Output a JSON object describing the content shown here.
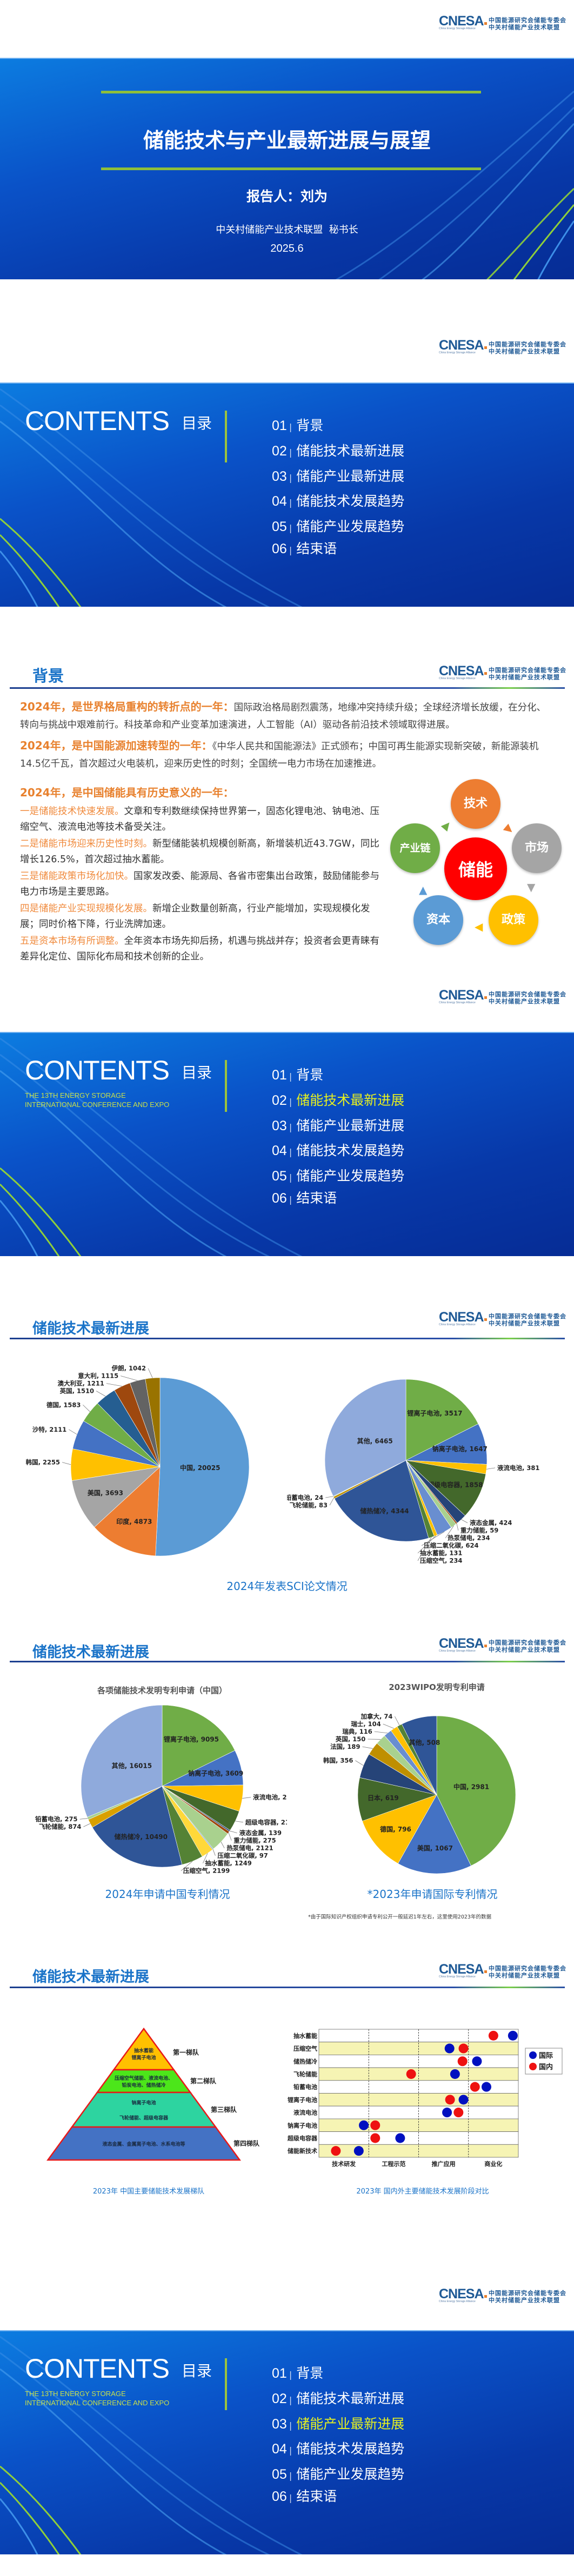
{
  "logo": {
    "abbr": "CNESA",
    "en": "China Energy Storage Alliance",
    "line1": "中国能源研究会储能专委会",
    "line2": "中关村储能产业技术联盟"
  },
  "cover": {
    "title": "储能技术与产业最新进展与展望",
    "speaker": "报告人：刘为",
    "org": "中关村储能产业技术联盟  秘书长",
    "date": "2025.6"
  },
  "contents": {
    "title": "CONTENTS",
    "title_cn": "目录",
    "subtitle_lines": [
      "THE 13TH ENERGY STORAGE",
      "INTERNATIONAL CONFERENCE AND EXPO"
    ],
    "items": [
      {
        "num": "01",
        "label": "背景"
      },
      {
        "num": "02",
        "label": "储能技术最新进展"
      },
      {
        "num": "03",
        "label": "储能产业最新进展"
      },
      {
        "num": "04",
        "label": "储能技术发展趋势"
      },
      {
        "num": "05",
        "label": "储能产业发展趋势"
      },
      {
        "num": "06",
        "label": "结束语"
      }
    ],
    "highlight_color": "#e6f020"
  },
  "background": {
    "title": "背景",
    "paragraphs": [
      {
        "head": "2024年，是世界格局重构的转折点的一年：",
        "body": "国际政治格局剧烈震荡，地缘冲突持续升级；全球经济增长放缓，在分化、转向与挑战中艰难前行。科技革命和产业变革加速演进，人工智能（AI）驱动各前沿技术领域取得进展。"
      },
      {
        "head": "2024年，是中国能源加速转型的一年：",
        "body": "《中华人民共和国能源法》正式颁布；中国可再生能源实现新突破，新能源装机14.5亿千瓦，首次超过火电装机，迎来历史性的时刻；全国统一电力市场在加速推进。"
      },
      {
        "head": "2024年，是中国储能具有历史意义的一年：",
        "body": ""
      }
    ],
    "points": [
      {
        "lead": "一是储能技术快速发展。",
        "text": "文章和专利数继续保持世界第一，固态化锂电池、钠电池、压缩空气、液流电池等技术备受关注。"
      },
      {
        "lead": "二是储能市场迎来历史性时刻。",
        "text": "新型储能装机规模创新高，新增装机近43.7GW，同比增长126.5%，首次超过抽水蓄能。"
      },
      {
        "lead": "三是储能政策市场化加快。",
        "text": "国家发改委、能源局、各省市密集出台政策，鼓励储能参与电力市场是主要思路。"
      },
      {
        "lead": "四是储能产业实现规模化发展。",
        "text": "新增企业数量创新高，行业产能增加，实现规模化发展；同时价格下降，行业洗牌加速。"
      },
      {
        "lead": "五是资本市场有所调整。",
        "text": "全年资本市场先抑后扬，机遇与挑战并存；投资者会更青睐有差异化定位、国际化布局和技术创新的企业。"
      }
    ],
    "cycle": {
      "center": "储能",
      "nodes": [
        {
          "label": "技术",
          "color": "#ed7d31"
        },
        {
          "label": "市场",
          "color": "#a5a5a5"
        },
        {
          "label": "政策",
          "color": "#ffc000"
        },
        {
          "label": "资本",
          "color": "#5b9bd5"
        },
        {
          "label": "产业链",
          "color": "#70ad47"
        }
      ],
      "center_color": "#ff0000"
    }
  },
  "tech_progress": {
    "title": "储能技术最新进展",
    "sci_caption": "2024年发表SCI论文情况",
    "cn_patent_caption": "2024年申请中国专利情况",
    "intl_patent_caption": "*2023年申请国际专利情况",
    "intl_note": "*由于国际知识产权组织申请专利公开一般延迟1年左右，这里使用2023年的数据",
    "pyramid_caption": "2023年 中国主要储能技术发展梯队",
    "stage_caption": "2023年 国内外主要储能技术发展阶段对比"
  },
  "pyramid": {
    "tiers": [
      {
        "label": "第一梯队",
        "lines": [
          "抽水蓄能",
          "锂离子电池"
        ],
        "color": "#ffc000"
      },
      {
        "label": "第二梯队",
        "lines": [
          "压缩空气储能、液流电池、",
          "铅炭电池、储热储冷"
        ],
        "color": "#4ce61a"
      },
      {
        "label": "第三梯队",
        "lines": [
          "钠离子电池",
          "飞轮储能、超级电容器"
        ],
        "color": "#2dd4a0"
      },
      {
        "label": "第四梯队",
        "lines": [
          "液态金属、金属离子电池、水系电池等"
        ],
        "color": "#4472c4"
      }
    ],
    "border_color": "#e81818"
  },
  "chart_data": [
    {
      "type": "pie",
      "title": "",
      "slices": [
        {
          "label": "中国",
          "value": 20025,
          "color": "#5b9bd5"
        },
        {
          "label": "印度",
          "value": 4873,
          "color": "#ed7d31"
        },
        {
          "label": "美国",
          "value": 3693,
          "color": "#a5a5a5"
        },
        {
          "label": "韩国",
          "value": 2255,
          "color": "#ffc000"
        },
        {
          "label": "沙特",
          "value": 2111,
          "color": "#4472c4"
        },
        {
          "label": "德国",
          "value": 1583,
          "color": "#70ad47"
        },
        {
          "label": "英国",
          "value": 1510,
          "color": "#255e91"
        },
        {
          "label": "澳大利亚",
          "value": 1211,
          "color": "#9e480e"
        },
        {
          "label": "意大利",
          "value": 1115,
          "color": "#636363"
        },
        {
          "label": "伊朗",
          "value": 1042,
          "color": "#997300"
        }
      ]
    },
    {
      "type": "pie",
      "title": "",
      "slices": [
        {
          "label": "锂离子电池",
          "value": 3517,
          "color": "#70ad47"
        },
        {
          "label": "钠离子电池",
          "value": 1647,
          "color": "#4472c4"
        },
        {
          "label": "液流电池",
          "value": 381,
          "color": "#ffc000"
        },
        {
          "label": "超级电容器",
          "value": 1858,
          "color": "#43682b"
        },
        {
          "label": "液态金属",
          "value": 424,
          "color": "#264478"
        },
        {
          "label": "重力储能",
          "value": 59,
          "color": "#9e480e"
        },
        {
          "label": "热泵储电",
          "value": 234,
          "color": "#a9d18e"
        },
        {
          "label": "压缩二氧化碳",
          "value": 624,
          "color": "#698ed0"
        },
        {
          "label": "抽水蓄能",
          "value": 131,
          "color": "#ffc000"
        },
        {
          "label": "压缩空气",
          "value": 234,
          "color": "#548235"
        },
        {
          "label": "储热储冷",
          "value": 4344,
          "color": "#2f5597"
        },
        {
          "label": "飞轮储能",
          "value": 83,
          "color": "#bf9000"
        },
        {
          "label": "铅蓄电池",
          "value": 24,
          "color": "#a9d18e"
        },
        {
          "label": "其他",
          "value": 6465,
          "color": "#8faadc"
        }
      ]
    },
    {
      "type": "pie",
      "title": "各项储能技术发明专利申请（中国）",
      "slices": [
        {
          "label": "锂离子电池",
          "value": 9095,
          "color": "#70ad47"
        },
        {
          "label": "钠离子电池",
          "value": 3609,
          "color": "#4472c4"
        },
        {
          "label": "液流电池",
          "value": 2686,
          "color": "#ffc000"
        },
        {
          "label": "超级电容器",
          "value": 2134,
          "color": "#43682b"
        },
        {
          "label": "液态金属",
          "value": 139,
          "color": "#264478"
        },
        {
          "label": "重力储能",
          "value": 275,
          "color": "#9e480e"
        },
        {
          "label": "热泵储电",
          "value": 2121,
          "color": "#a9d18e"
        },
        {
          "label": "压缩二氧化碳",
          "value": 97,
          "color": "#698ed0"
        },
        {
          "label": "抽水蓄能",
          "value": 1249,
          "color": "#ffd83a"
        },
        {
          "label": "压缩空气",
          "value": 2199,
          "color": "#548235"
        },
        {
          "label": "储热储冷",
          "value": 10490,
          "color": "#2f5597"
        },
        {
          "label": "飞轮储能",
          "value": 874,
          "color": "#d9a000"
        },
        {
          "label": "铅蓄电池",
          "value": 275,
          "color": "#a9d18e"
        },
        {
          "label": "其他",
          "value": 16015,
          "color": "#8faadc"
        }
      ]
    },
    {
      "type": "pie",
      "title": "2023WIPO发明专利申请",
      "slices": [
        {
          "label": "中国",
          "value": 2981,
          "color": "#70ad47"
        },
        {
          "label": "美国",
          "value": 1067,
          "color": "#4472c4"
        },
        {
          "label": "德国",
          "value": 796,
          "color": "#ffc000"
        },
        {
          "label": "日本",
          "value": 619,
          "color": "#43682b"
        },
        {
          "label": "韩国",
          "value": 356,
          "color": "#264478"
        },
        {
          "label": "法国",
          "value": 189,
          "color": "#bf8f00"
        },
        {
          "label": "英国",
          "value": 150,
          "color": "#a9d18e"
        },
        {
          "label": "瑞典",
          "value": 116,
          "color": "#698ed0"
        },
        {
          "label": "瑞士",
          "value": 104,
          "color": "#ffc000"
        },
        {
          "label": "加拿大",
          "value": 74,
          "color": "#548235"
        },
        {
          "label": "其他",
          "value": 508,
          "color": "#2f5597"
        }
      ]
    },
    {
      "type": "scatter",
      "title": "",
      "categories": [
        "技术研发",
        "工程示范",
        "推广应用",
        "商业化"
      ],
      "rows": [
        "抽水蓄能",
        "压缩空气",
        "储热储冷",
        "飞轮储能",
        "铅蓄电池",
        "锂离子电池",
        "液流电池",
        "钠离子电池",
        "超级电容器",
        "储能新技术"
      ],
      "xlim": [
        0,
        4
      ],
      "legend_position": "right",
      "series": [
        {
          "name": "国际",
          "color": "#0010c0",
          "values": [
            3.89,
            2.62,
            3.17,
            2.73,
            3.36,
            2.9,
            2.57,
            0.9,
            1.63,
            0.8
          ]
        },
        {
          "name": "国内",
          "color": "#ee1111",
          "values": [
            3.5,
            2.9,
            2.88,
            1.85,
            3.13,
            2.63,
            2.8,
            1.13,
            1.13,
            0.34
          ]
        }
      ]
    }
  ]
}
